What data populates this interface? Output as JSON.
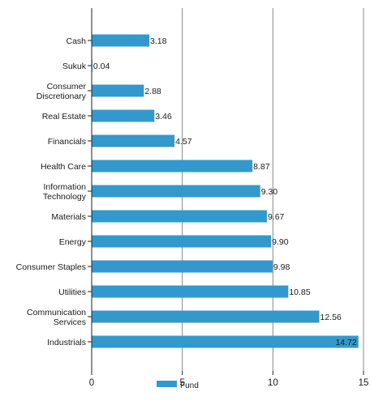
{
  "chart_data": {
    "type": "bar",
    "orientation": "horizontal",
    "categories": [
      "Cash",
      "Sukuk",
      "Consumer Discretionary",
      "Real Estate",
      "Financials",
      "Health Care",
      "Information Technology",
      "Materials",
      "Energy",
      "Consumer Staples",
      "Utilities",
      "Communication Services",
      "Industrials"
    ],
    "category_lines": [
      [
        "Cash"
      ],
      [
        "Sukuk"
      ],
      [
        "Consumer",
        "Discretionary"
      ],
      [
        "Real Estate"
      ],
      [
        "Financials"
      ],
      [
        "Health Care"
      ],
      [
        "Information",
        "Technology"
      ],
      [
        "Materials"
      ],
      [
        "Energy"
      ],
      [
        "Consumer Staples"
      ],
      [
        "Utilities"
      ],
      [
        "Communication",
        "Services"
      ],
      [
        "Industrials"
      ]
    ],
    "series": [
      {
        "name": "Fund",
        "values": [
          3.18,
          0.04,
          2.88,
          3.46,
          4.57,
          8.87,
          9.3,
          9.67,
          9.9,
          9.98,
          10.85,
          12.56,
          14.72
        ],
        "labels": [
          "3.18",
          "0.04",
          "2.88",
          "3.46",
          "4.57",
          "8.87",
          "9.30",
          "9.67",
          "9.90",
          "9.98",
          "10.85",
          "12.56",
          "14.72"
        ]
      }
    ],
    "xlim": [
      0,
      15
    ],
    "xticks": [
      "0",
      "5",
      "10",
      "15"
    ],
    "grid": "vertical",
    "legend": "bottom-center",
    "colors": {
      "bar": "#3399cc",
      "grid": "#888888",
      "axis": "#222222"
    }
  }
}
